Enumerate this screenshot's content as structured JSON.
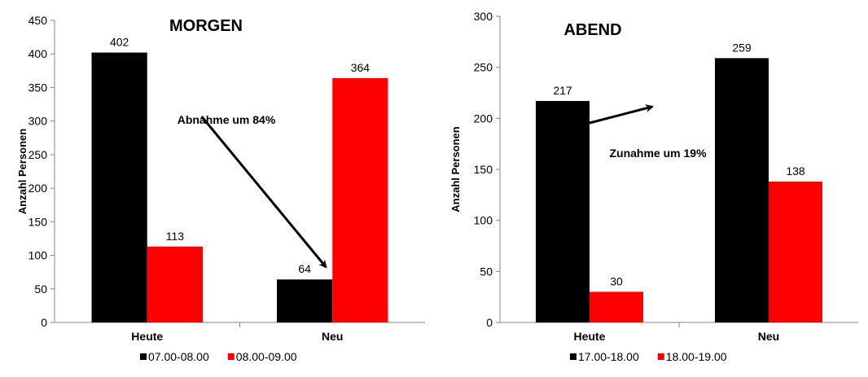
{
  "chart_data": [
    {
      "type": "bar",
      "title": "MORGEN",
      "ylabel": "Anzahl Personen",
      "ylim": [
        0,
        450
      ],
      "yticks": [
        0,
        50,
        100,
        150,
        200,
        250,
        300,
        350,
        400,
        450
      ],
      "categories": [
        "Heute",
        "Neu"
      ],
      "series": [
        {
          "name": "07.00-08.00",
          "color": "#000000",
          "values": [
            402,
            64
          ]
        },
        {
          "name": "08.00-09.00",
          "color": "#ff0000",
          "values": [
            113,
            364
          ]
        }
      ],
      "annotation": "Abnahme um 84%",
      "legend": "bottom"
    },
    {
      "type": "bar",
      "title": "ABEND",
      "ylabel": "Anzahl Personen",
      "ylim": [
        0,
        300
      ],
      "yticks": [
        0,
        50,
        100,
        150,
        200,
        250,
        300
      ],
      "categories": [
        "Heute",
        "Neu"
      ],
      "series": [
        {
          "name": "17.00-18.00",
          "color": "#000000",
          "values": [
            217,
            259
          ]
        },
        {
          "name": "18.00-19.00",
          "color": "#ff0000",
          "values": [
            30,
            138
          ]
        }
      ],
      "annotation": "Zunahme um 19%",
      "legend": "bottom"
    }
  ]
}
